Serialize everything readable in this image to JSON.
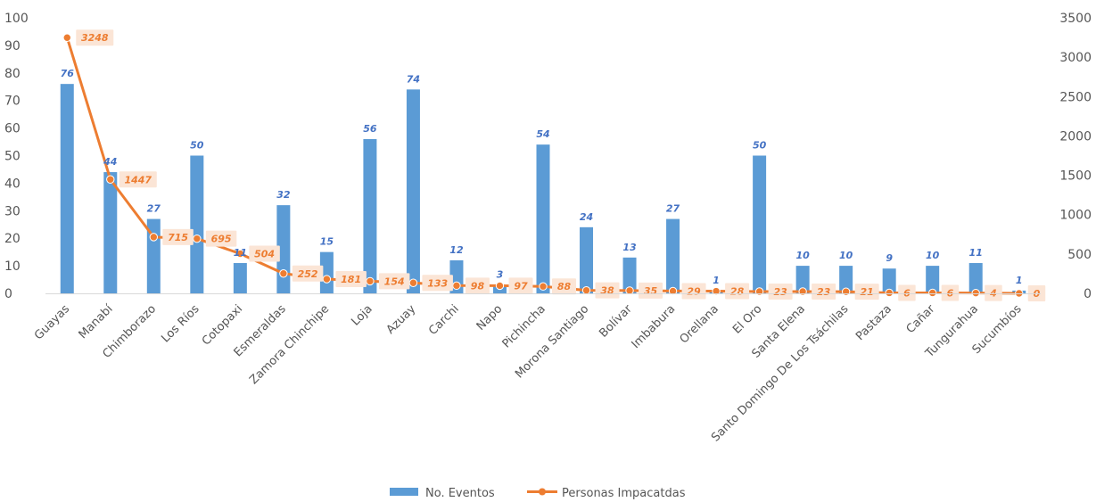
{
  "chart_data": {
    "type": "bar",
    "categories": [
      "Guayas",
      "Manabí",
      "Chimborazo",
      "Los Ríos",
      "Cotopaxi",
      "Esmeraldas",
      "Zamora Chinchipe",
      "Loja",
      "Azuay",
      "Carchi",
      "Napo",
      "Pichincha",
      "Morona Santiago",
      "Bolívar",
      "Imbabura",
      "Orellana",
      "El Oro",
      "Santa Elena",
      "Santo Domingo De Los Tsáchilas",
      "Pastaza",
      "Cañar",
      "Tungurahua",
      "Sucumbíos"
    ],
    "series": [
      {
        "name": "No. Eventos",
        "type": "bar",
        "axis": "left",
        "color": "#5B9BD5",
        "label_color": "#4472C4",
        "values": [
          76,
          44,
          27,
          50,
          11,
          32,
          15,
          56,
          74,
          12,
          3,
          54,
          24,
          13,
          27,
          1,
          50,
          10,
          10,
          9,
          10,
          11,
          1
        ]
      },
      {
        "name": "Personas Impacatdas",
        "type": "line",
        "axis": "right",
        "color": "#ED7D31",
        "label_bg": "#FBE5D6",
        "values": [
          3248,
          1447,
          715,
          695,
          504,
          252,
          181,
          154,
          133,
          98,
          97,
          88,
          38,
          35,
          29,
          28,
          23,
          23,
          21,
          6,
          6,
          4,
          0
        ]
      }
    ],
    "y_left": {
      "ylim": [
        0,
        100
      ],
      "ticks": [
        0,
        10,
        20,
        30,
        40,
        50,
        60,
        70,
        80,
        90,
        100
      ]
    },
    "y_right": {
      "ylim": [
        0,
        3500
      ],
      "ticks": [
        0,
        500,
        1000,
        1500,
        2000,
        2500,
        3000,
        3500
      ]
    },
    "grid": false,
    "legend": "bottom-center"
  }
}
